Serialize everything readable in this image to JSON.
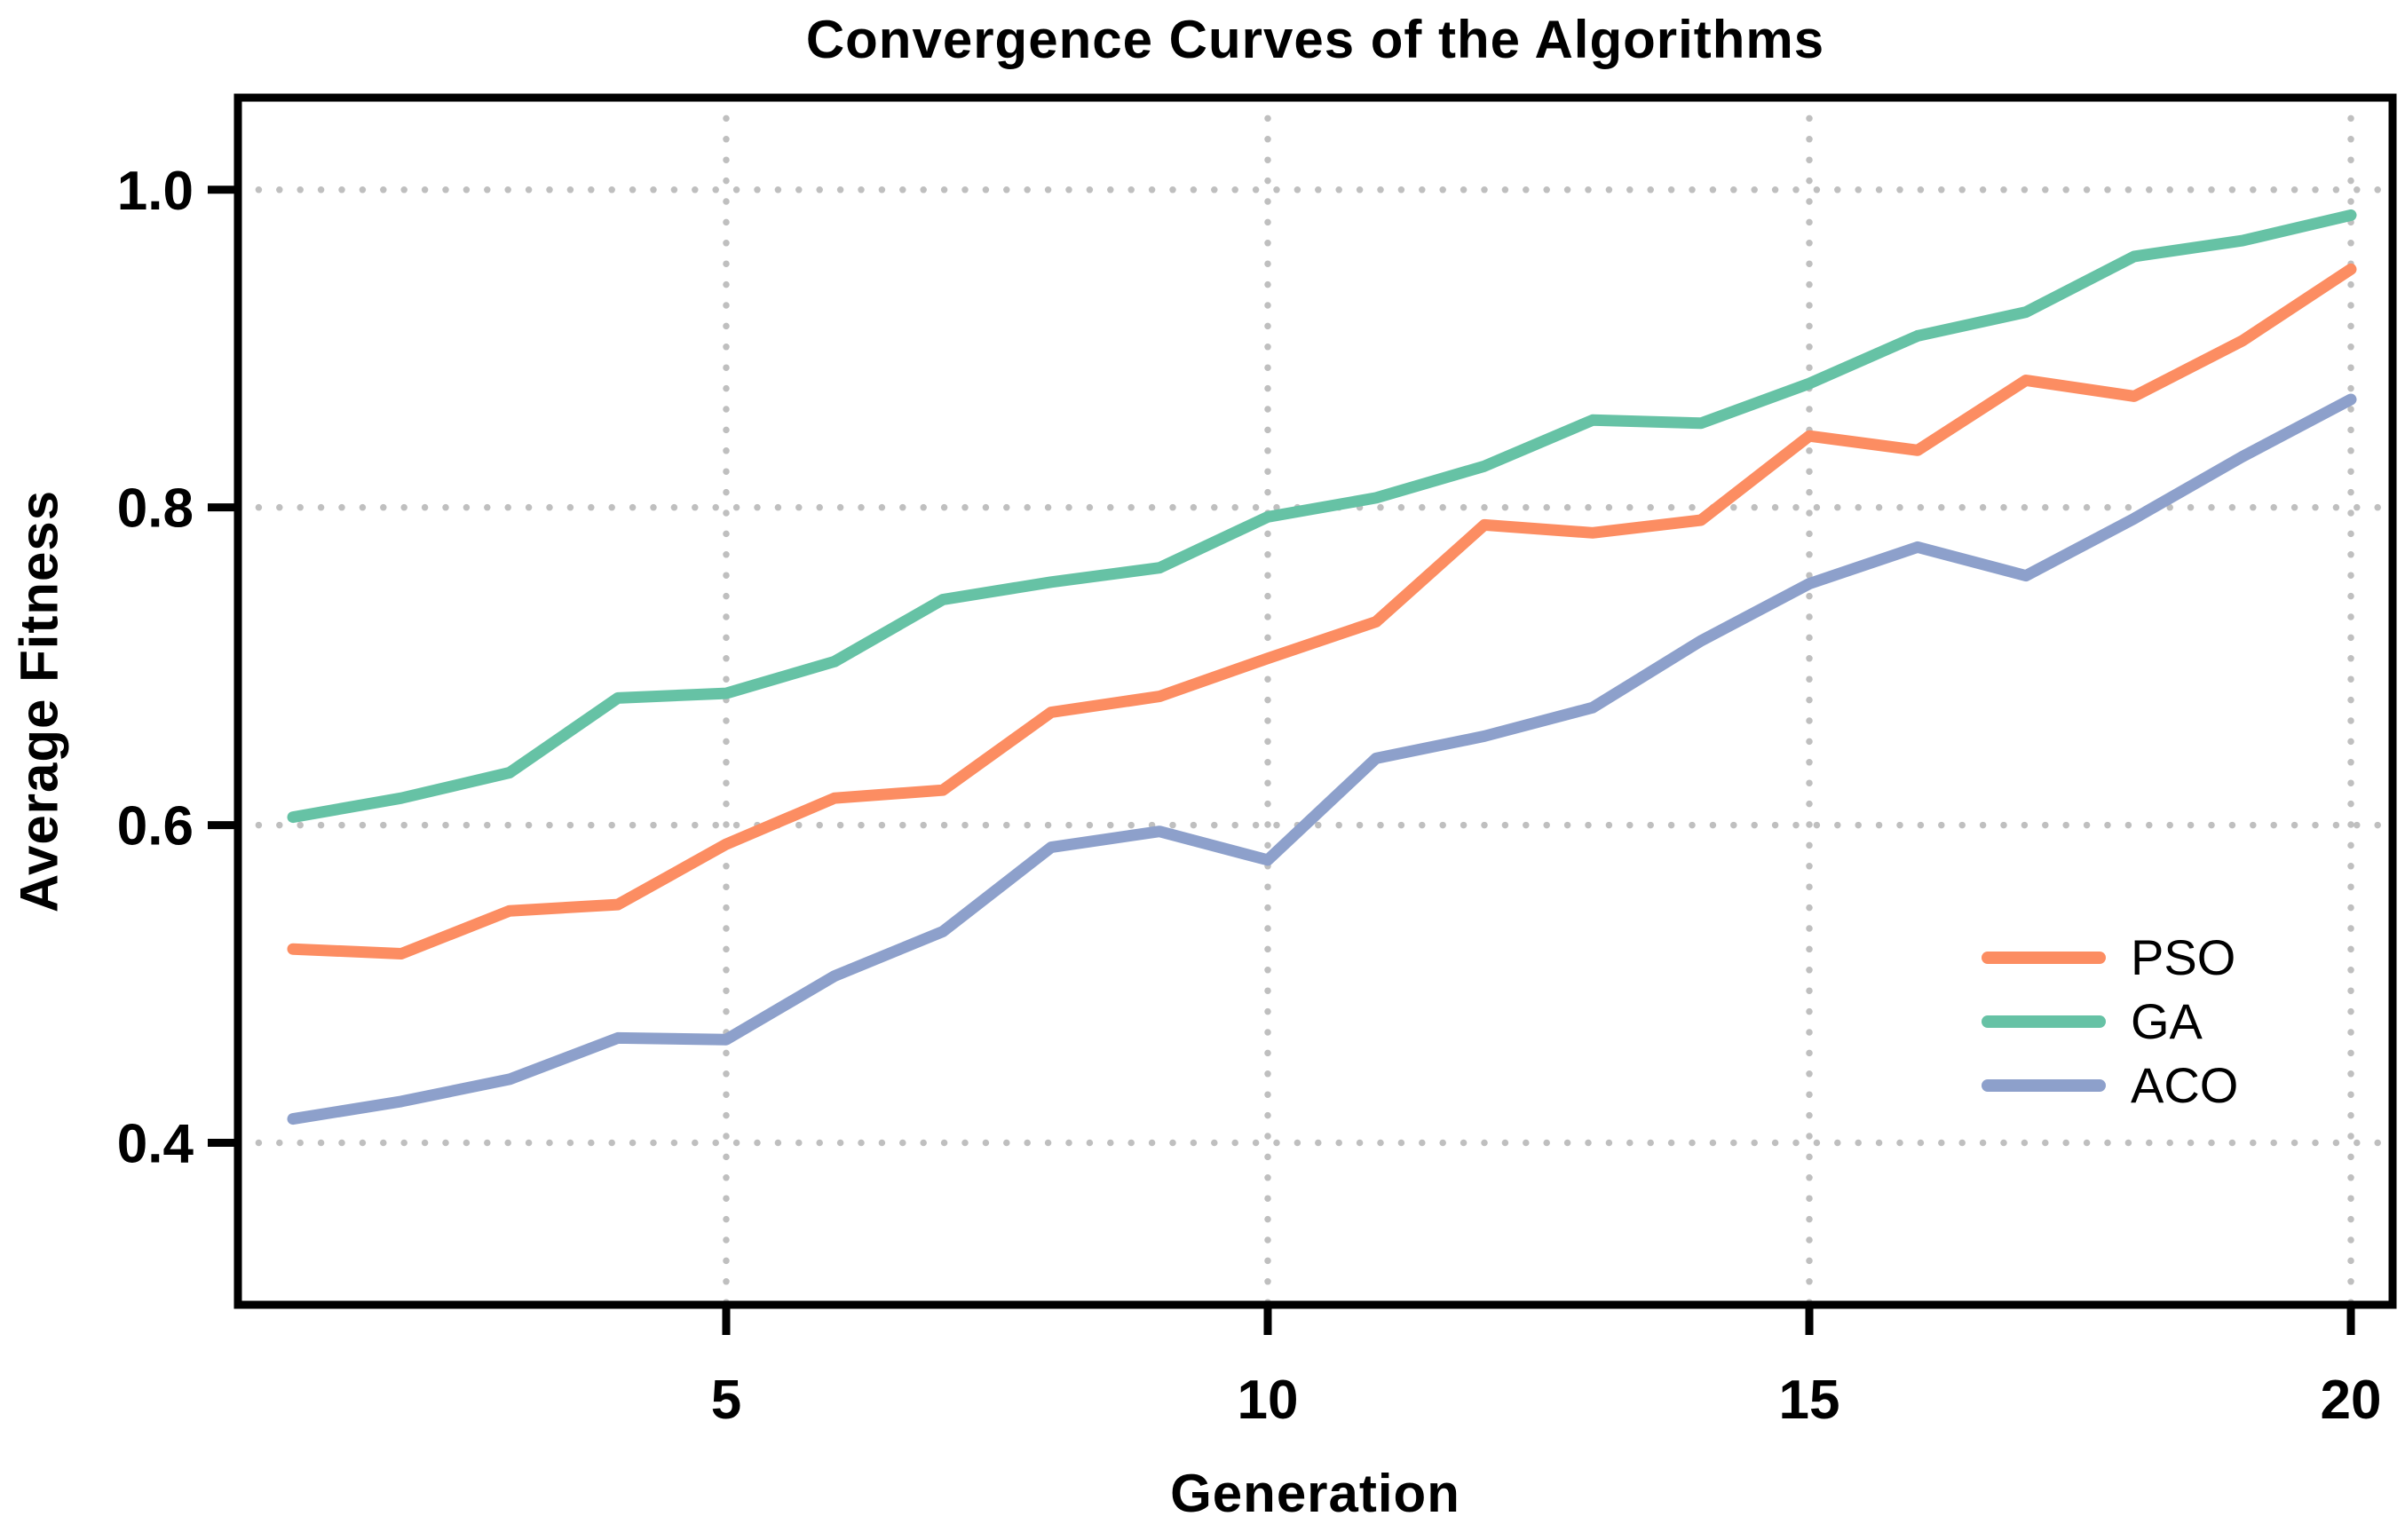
{
  "chart_data": {
    "type": "line",
    "title": "Convergence Curves of the Algorithms",
    "xlabel": "Generation",
    "ylabel": "Average Fitness",
    "x": [
      1,
      2,
      3,
      4,
      5,
      6,
      7,
      8,
      9,
      10,
      11,
      12,
      13,
      14,
      15,
      16,
      17,
      18,
      19,
      20
    ],
    "series": [
      {
        "name": "PSO",
        "color": "#FC8D62",
        "values": [
          0.522,
          0.519,
          0.546,
          0.55,
          0.588,
          0.617,
          0.622,
          0.671,
          0.681,
          0.705,
          0.728,
          0.789,
          0.784,
          0.792,
          0.845,
          0.836,
          0.88,
          0.87,
          0.905,
          0.95
        ]
      },
      {
        "name": "GA",
        "color": "#66C2A5",
        "values": [
          0.605,
          0.617,
          0.633,
          0.68,
          0.683,
          0.703,
          0.742,
          0.753,
          0.762,
          0.794,
          0.806,
          0.826,
          0.855,
          0.853,
          0.878,
          0.908,
          0.923,
          0.958,
          0.968,
          0.984
        ]
      },
      {
        "name": "ACO",
        "color": "#8DA0CB",
        "values": [
          0.415,
          0.426,
          0.44,
          0.466,
          0.465,
          0.505,
          0.533,
          0.586,
          0.596,
          0.578,
          0.642,
          0.656,
          0.674,
          0.716,
          0.752,
          0.775,
          0.757,
          0.793,
          0.832,
          0.868
        ]
      }
    ],
    "xticks": {
      "values": [
        5,
        10,
        15,
        20
      ],
      "labels": [
        "5",
        "10",
        "15",
        "20"
      ]
    },
    "yticks": {
      "values": [
        0.4,
        0.6,
        0.8,
        1.0
      ],
      "labels": [
        "0.4",
        "0.6",
        "0.8",
        "1.0"
      ]
    },
    "xlim": [
      0.492,
      20.385
    ],
    "ylim": [
      0.298,
      1.058
    ],
    "grid": "dotted",
    "legend_position": "right-center"
  },
  "legend": {
    "items": [
      {
        "label": "PSO"
      },
      {
        "label": "GA"
      },
      {
        "label": "ACO"
      }
    ]
  }
}
